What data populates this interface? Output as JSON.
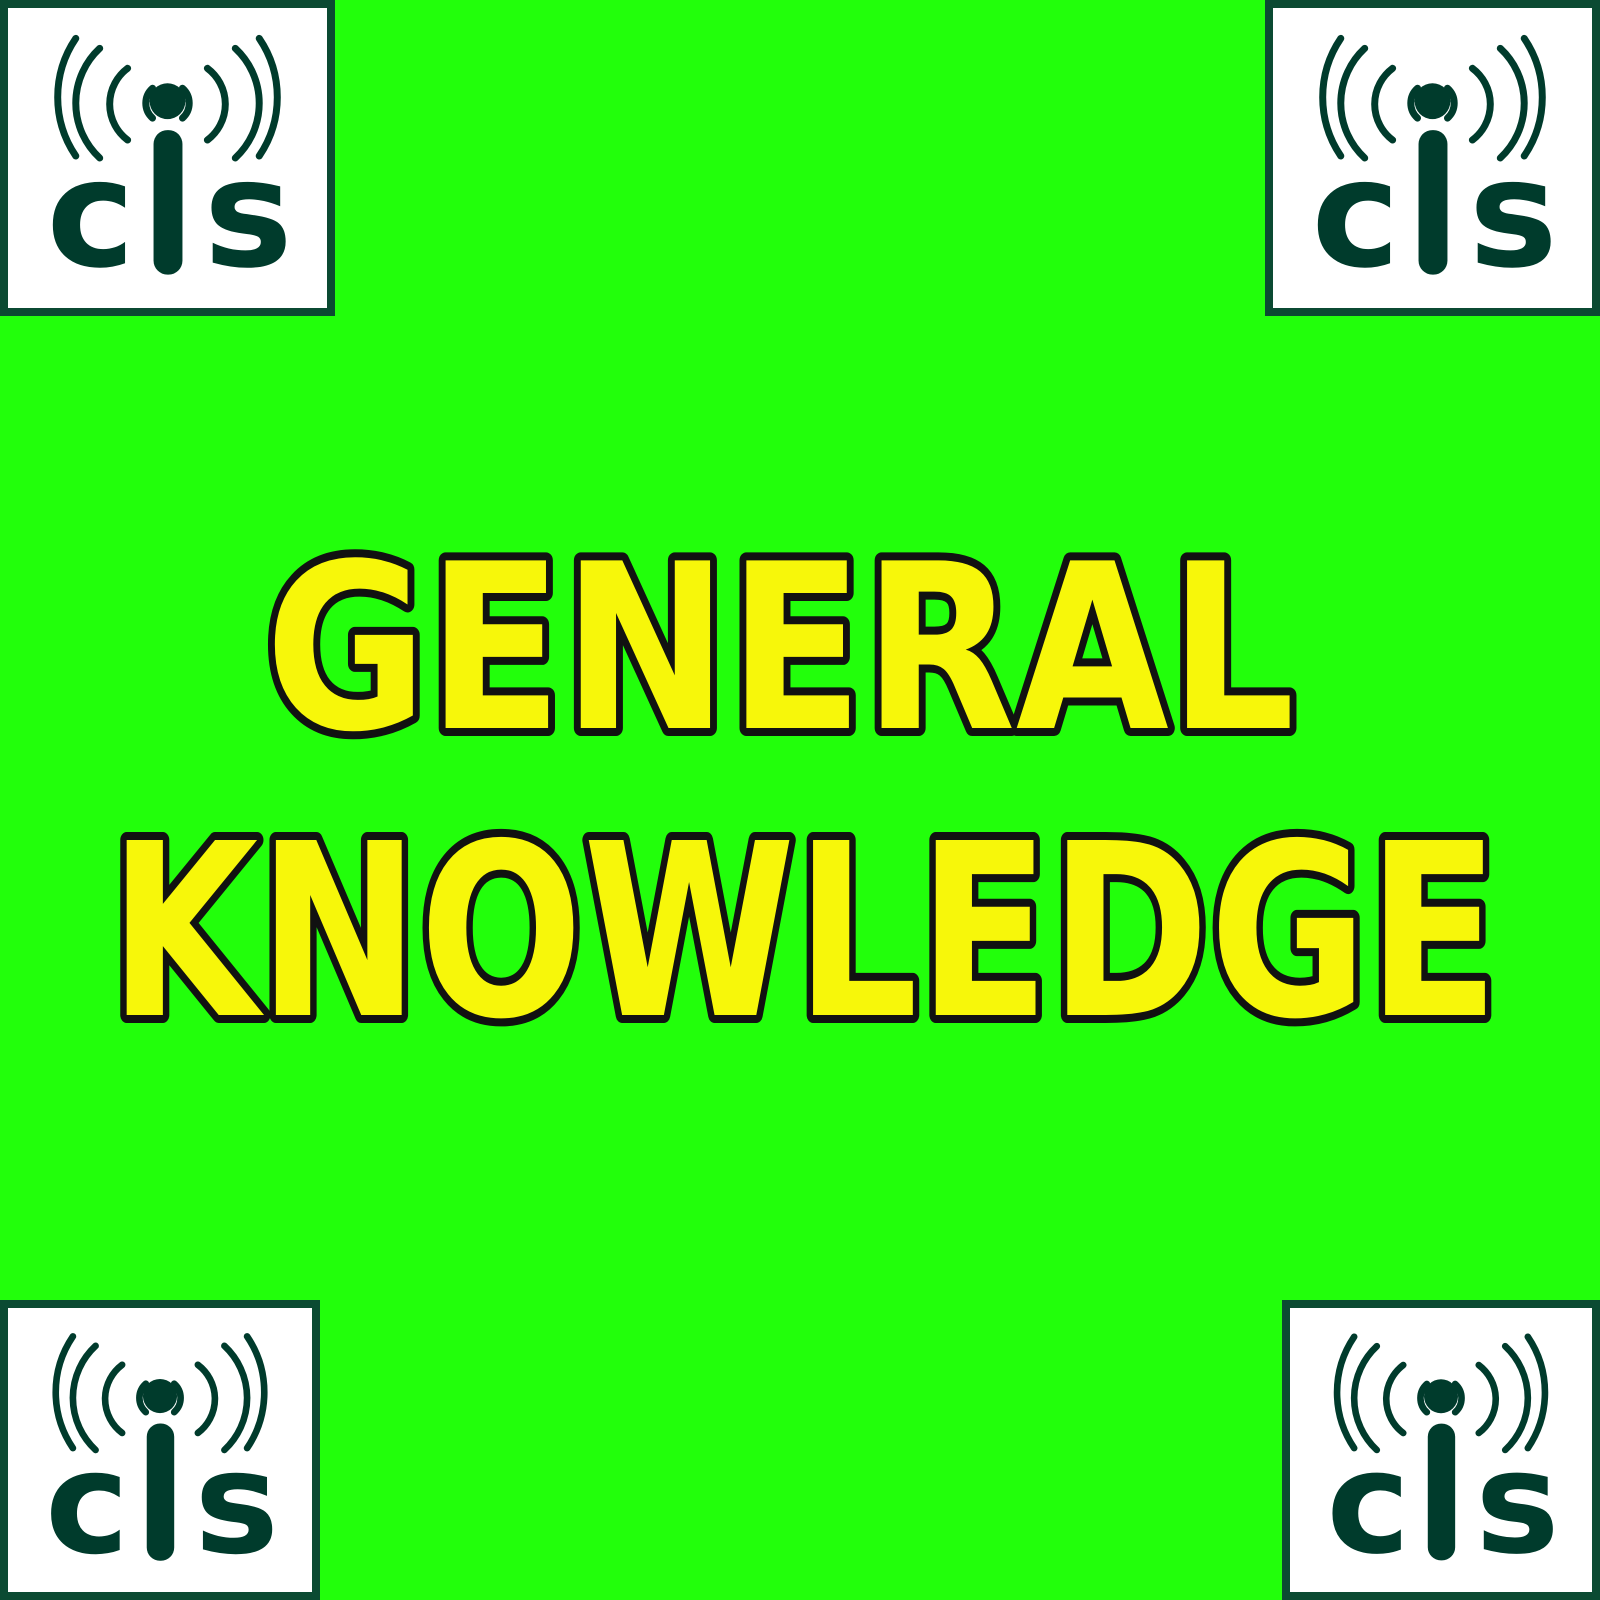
{
  "background_color": "#22ff0b",
  "title": {
    "line1": "GENERAL",
    "line2": "KNOWLEDGE",
    "fill_color": "#f7f70a",
    "outline_color": "#111111"
  },
  "logo": {
    "text": "cis",
    "ink_color": "#003b2c",
    "border_color": "#0b4a32",
    "icon": "broadcast-signal-icon"
  }
}
